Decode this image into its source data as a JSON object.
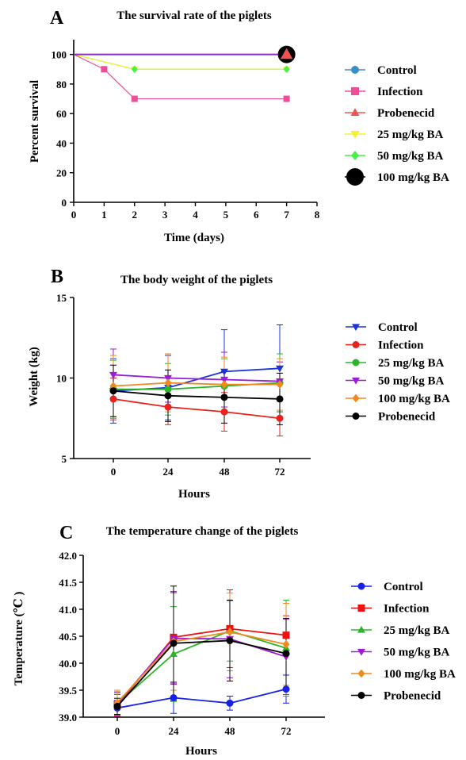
{
  "chart_data": [
    {
      "panel": "A",
      "type": "line",
      "title": "The survival rate of the piglets",
      "xlabel": "Time (days)",
      "ylabel": "Percent survival",
      "xlim": [
        0,
        8
      ],
      "ylim": [
        0,
        110
      ],
      "xticks": [
        0,
        1,
        2,
        3,
        4,
        5,
        6,
        7,
        8
      ],
      "yticks": [
        0,
        20,
        40,
        60,
        80,
        100
      ],
      "legend_position": "right",
      "series": [
        {
          "name": "Control",
          "color": "#3a8fc4",
          "marker": "circle",
          "x": [
            0,
            7
          ],
          "y": [
            100,
            100
          ]
        },
        {
          "name": "Infection",
          "color": "#ee4d9a",
          "marker": "square",
          "x": [
            0,
            1,
            2,
            7
          ],
          "y": [
            100,
            90,
            70,
            70
          ]
        },
        {
          "name": "Probenecid",
          "color": "#ef5350",
          "marker": "triangle-up",
          "x": [
            0,
            7
          ],
          "y": [
            100,
            100
          ]
        },
        {
          "name": "25 mg/kg BA",
          "color": "#f6f12a",
          "marker": "triangle-down",
          "x": [
            0,
            2,
            7
          ],
          "y": [
            100,
            90,
            90
          ]
        },
        {
          "name": "50 mg/kg BA",
          "color": "#4cef4a",
          "marker": "diamond",
          "x": [
            0,
            2,
            7
          ],
          "y": [
            100,
            90,
            90
          ]
        },
        {
          "name": "100 mg/kg BA",
          "color": "#000000",
          "marker": "big-circle",
          "x": [
            0,
            7
          ],
          "y": [
            100,
            100
          ]
        }
      ],
      "overlay_line_color": "#8b2fc9"
    },
    {
      "panel": "B",
      "type": "line",
      "title": "The body weight of the piglets",
      "xlabel": "Hours",
      "ylabel": "Weight (kg)",
      "categories": [
        "0",
        "24",
        "48",
        "72"
      ],
      "ylim": [
        5,
        15
      ],
      "yticks": [
        5,
        10,
        15
      ],
      "legend_position": "right",
      "series": [
        {
          "name": "Control",
          "color": "#1a33dd",
          "marker": "triangle-down",
          "values": [
            9.2,
            9.4,
            10.4,
            10.6
          ],
          "err": [
            2.0,
            2.0,
            2.6,
            2.7
          ]
        },
        {
          "name": "Infection",
          "color": "#e8221c",
          "marker": "circle",
          "values": [
            8.7,
            8.2,
            7.9,
            7.5
          ],
          "err": [
            1.3,
            1.1,
            1.2,
            1.1
          ]
        },
        {
          "name": "25 mg/kg BA",
          "color": "#2cb52c",
          "marker": "circle",
          "values": [
            9.3,
            9.3,
            9.5,
            9.7
          ],
          "err": [
            1.8,
            1.6,
            1.7,
            1.8
          ]
        },
        {
          "name": "50 mg/kg BA",
          "color": "#9b1bd6",
          "marker": "triangle-down",
          "values": [
            10.2,
            10.0,
            9.9,
            9.8
          ],
          "err": [
            1.6,
            1.5,
            1.7,
            1.2
          ]
        },
        {
          "name": "100 mg/kg BA",
          "color": "#f08a1c",
          "marker": "diamond",
          "values": [
            9.5,
            9.7,
            9.6,
            9.6
          ],
          "err": [
            1.9,
            1.8,
            1.7,
            1.6
          ]
        },
        {
          "name": "Probenecid",
          "color": "#000000",
          "marker": "circle",
          "values": [
            9.2,
            8.9,
            8.8,
            8.7
          ],
          "err": [
            1.6,
            1.6,
            1.6,
            1.6
          ]
        }
      ]
    },
    {
      "panel": "C",
      "type": "line",
      "title": "The temperature change of the piglets",
      "xlabel": "Hours",
      "ylabel": "Temperature (℃ )",
      "categories": [
        "0",
        "24",
        "48",
        "72"
      ],
      "ylim": [
        39.0,
        42.0
      ],
      "yticks": [
        "39.0",
        "39.5",
        "40.0",
        "40.5",
        "41.0",
        "41.5",
        "42.0"
      ],
      "legend_position": "right",
      "series": [
        {
          "name": "Control",
          "color": "#1520e8",
          "marker": "circle",
          "values": [
            39.17,
            39.36,
            39.26,
            39.52
          ],
          "err": [
            0.14,
            0.29,
            0.13,
            0.26
          ]
        },
        {
          "name": "Infection",
          "color": "#ee1111",
          "marker": "square",
          "values": [
            39.22,
            40.48,
            40.64,
            40.52
          ],
          "err": [
            0.2,
            0.85,
            0.72,
            0.36
          ]
        },
        {
          "name": "25 mg/kg BA",
          "color": "#2cb52c",
          "marker": "triangle-up",
          "values": [
            39.25,
            40.17,
            40.6,
            40.28
          ],
          "err": [
            0.2,
            0.88,
            0.56,
            0.89
          ]
        },
        {
          "name": "50 mg/kg BA",
          "color": "#9b1bd6",
          "marker": "triangle-down",
          "values": [
            39.25,
            40.46,
            40.45,
            40.12
          ],
          "err": [
            0.22,
            0.85,
            0.72,
            0.7
          ]
        },
        {
          "name": "100 mg/kg BA",
          "color": "#f08a1c",
          "marker": "diamond",
          "values": [
            39.27,
            40.4,
            40.58,
            40.35
          ],
          "err": [
            0.23,
            0.9,
            0.72,
            0.76
          ]
        },
        {
          "name": "Probenecid",
          "color": "#000000",
          "marker": "circle",
          "values": [
            39.2,
            40.37,
            40.42,
            40.18
          ],
          "err": [
            0.15,
            1.06,
            0.75,
            0.65
          ]
        }
      ]
    }
  ]
}
